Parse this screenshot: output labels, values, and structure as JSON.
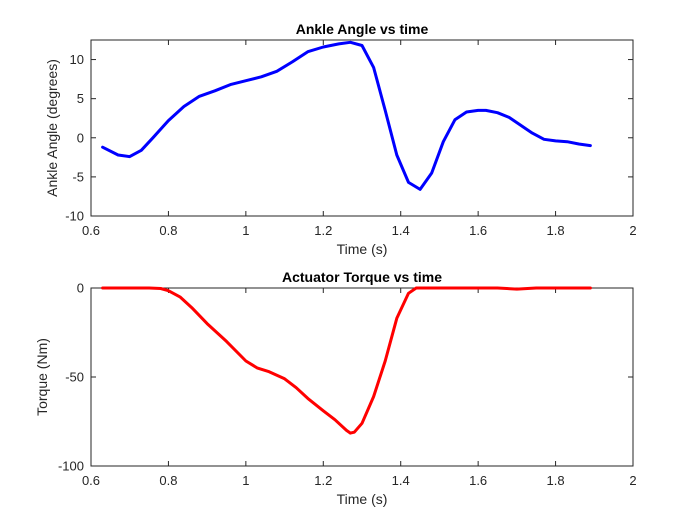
{
  "chart_data": [
    {
      "type": "line",
      "title": "Ankle Angle vs time",
      "xlabel": "Time (s)",
      "ylabel": "Ankle Angle (degrees)",
      "xlim": [
        0.6,
        2
      ],
      "ylim": [
        -10,
        12.5
      ],
      "xticks": [
        0.6,
        0.8,
        1,
        1.2,
        1.4,
        1.6,
        1.8,
        2
      ],
      "xtick_labels": [
        "0.6",
        "0.8",
        "1",
        "1.2",
        "1.4",
        "1.6",
        "1.8",
        "2"
      ],
      "yticks": [
        -10,
        -5,
        0,
        5,
        10
      ],
      "ytick_labels": [
        "-10",
        "-5",
        "0",
        "5",
        "10"
      ],
      "grid": false,
      "series": [
        {
          "color": "#0000ff",
          "x": [
            0.63,
            0.67,
            0.7,
            0.73,
            0.76,
            0.8,
            0.84,
            0.88,
            0.92,
            0.96,
            1.0,
            1.04,
            1.08,
            1.12,
            1.16,
            1.2,
            1.24,
            1.27,
            1.3,
            1.33,
            1.36,
            1.39,
            1.42,
            1.45,
            1.48,
            1.51,
            1.54,
            1.57,
            1.6,
            1.62,
            1.65,
            1.68,
            1.71,
            1.74,
            1.77,
            1.8,
            1.83,
            1.86,
            1.89
          ],
          "y": [
            -1.2,
            -2.2,
            -2.4,
            -1.6,
            0.0,
            2.2,
            4.0,
            5.3,
            6.0,
            6.8,
            7.3,
            7.8,
            8.5,
            9.7,
            11.0,
            11.6,
            12.0,
            12.2,
            11.8,
            9.0,
            3.5,
            -2.2,
            -5.7,
            -6.6,
            -4.5,
            -0.5,
            2.3,
            3.3,
            3.5,
            3.5,
            3.2,
            2.6,
            1.6,
            0.6,
            -0.2,
            -0.4,
            -0.5,
            -0.8,
            -1.0
          ]
        }
      ]
    },
    {
      "type": "line",
      "title": "Actuator Torque vs time",
      "xlabel": "Time (s)",
      "ylabel": "Torque (Nm)",
      "xlim": [
        0.6,
        2
      ],
      "ylim": [
        -100,
        0
      ],
      "xticks": [
        0.6,
        0.8,
        1,
        1.2,
        1.4,
        1.6,
        1.8,
        2
      ],
      "xtick_labels": [
        "0.6",
        "0.8",
        "1",
        "1.2",
        "1.4",
        "1.6",
        "1.8",
        "2"
      ],
      "yticks": [
        -100,
        -50,
        0
      ],
      "ytick_labels": [
        "-100",
        "-50",
        "0"
      ],
      "grid": false,
      "series": [
        {
          "color": "#ff0000",
          "x": [
            0.63,
            0.7,
            0.75,
            0.78,
            0.8,
            0.83,
            0.86,
            0.9,
            0.95,
            1.0,
            1.03,
            1.06,
            1.1,
            1.13,
            1.16,
            1.2,
            1.23,
            1.26,
            1.27,
            1.28,
            1.3,
            1.33,
            1.36,
            1.39,
            1.42,
            1.44,
            1.5,
            1.6,
            1.65,
            1.7,
            1.75,
            1.8,
            1.89
          ],
          "y": [
            0,
            0,
            0,
            -0.3,
            -1.5,
            -5,
            -11,
            -20,
            -30,
            -41,
            -45,
            -47,
            -51,
            -56,
            -62,
            -69,
            -74,
            -80,
            -81.5,
            -81,
            -76,
            -61,
            -41,
            -17,
            -3,
            0,
            0,
            0,
            0,
            -0.6,
            0,
            0,
            0
          ]
        }
      ]
    }
  ]
}
